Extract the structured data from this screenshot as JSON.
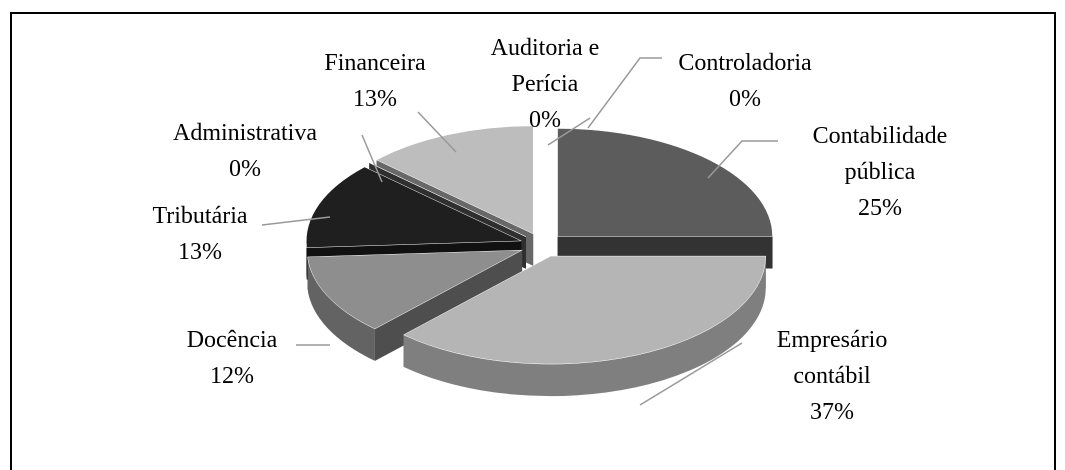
{
  "chart_data": {
    "type": "pie3d",
    "categories": [
      "Contabilidade pública",
      "Empresário contábil",
      "Docência",
      "Tributária",
      "Administrativa",
      "Financeira",
      "Auditoria e Perícia",
      "Controladoria"
    ],
    "values": [
      25,
      37,
      12,
      13,
      0,
      13,
      0,
      0
    ],
    "value_labels": [
      "25%",
      "37%",
      "12%",
      "13%",
      "0%",
      "13%",
      "0%",
      "0%"
    ],
    "colors": [
      "#5c5c5c",
      "#b5b5b5",
      "#8e8e8e",
      "#1f1f1f",
      "#555555",
      "#bdbdbd",
      "#d0d0d0",
      "#a0a0a0"
    ]
  }
}
